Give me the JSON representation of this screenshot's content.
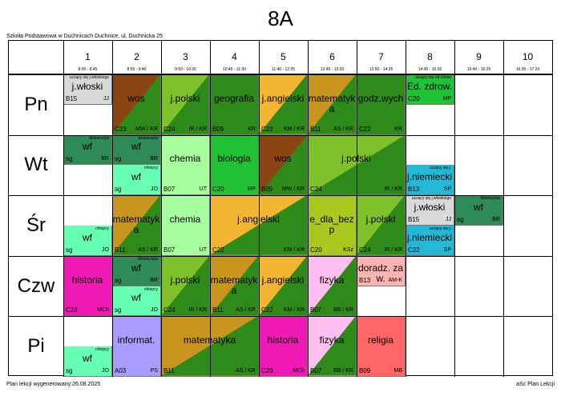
{
  "title": "8A",
  "school": "Szkoła Podstawowa w Duchnicach Duchnice, ul. Duchnicka 25",
  "footer_left": "Plan lekcji wygenerowany:26.08.2025",
  "footer_right": "aSc Plan Lekcji",
  "periods": [
    {
      "num": "1",
      "time": "8:00 - 8:45"
    },
    {
      "num": "2",
      "time": "8:55 - 9:40"
    },
    {
      "num": "3",
      "time": "9:50 - 10:35"
    },
    {
      "num": "4",
      "time": "10:45 - 11:30"
    },
    {
      "num": "5",
      "time": "11:40 - 12:25"
    },
    {
      "num": "6",
      "time": "12:45 - 13:30"
    },
    {
      "num": "7",
      "time": "13:50 - 14:35"
    },
    {
      "num": "8",
      "time": "14:45 - 15:30"
    },
    {
      "num": "9",
      "time": "15:40 - 16:25"
    },
    {
      "num": "10",
      "time": "16:35 - 17:20"
    }
  ],
  "days": [
    "Pn",
    "Wt",
    "Śr",
    "Czw",
    "Pi"
  ],
  "lessons": [
    {
      "day": 0,
      "p": 0,
      "span": 1,
      "half": "top",
      "subject": "j.włoski",
      "room": "B15",
      "teacher": "JJ",
      "group": "uczący się j.włoskiego",
      "c1": "#d9d9d9",
      "c2": ""
    },
    {
      "day": 0,
      "p": 1,
      "span": 1,
      "half": "full",
      "subject": "wos",
      "room": "C23",
      "teacher": "MW / KR",
      "group": "",
      "c1": "#8b4513",
      "c2": "#2e8b1a"
    },
    {
      "day": 0,
      "p": 2,
      "span": 1,
      "half": "full",
      "subject": "j.polski",
      "room": "C24",
      "teacher": "IR / KR",
      "group": "",
      "c1": "#7fc12a",
      "c2": "#2e8b1a"
    },
    {
      "day": 0,
      "p": 3,
      "span": 1,
      "half": "full",
      "subject": "geografia",
      "room": "B09",
      "teacher": "KR",
      "group": "",
      "c1": "#2e8b1a",
      "c2": "#2e8b1a"
    },
    {
      "day": 0,
      "p": 4,
      "span": 1,
      "half": "full",
      "subject": "j.angielski",
      "room": "C22",
      "teacher": "KM / KR",
      "group": "",
      "c1": "#f2b632",
      "c2": "#2e8b1a"
    },
    {
      "day": 0,
      "p": 5,
      "span": 1,
      "half": "full",
      "subject": "matematyka",
      "room": "B11",
      "teacher": "AS / KR",
      "group": "",
      "c1": "#c8961e",
      "c2": "#2e8b1a"
    },
    {
      "day": 0,
      "p": 6,
      "span": 1,
      "half": "full",
      "subject": "godz.wych",
      "room": "C22",
      "teacher": "KR",
      "group": "",
      "c1": "#2e8b1a",
      "c2": "#2e8b1a"
    },
    {
      "day": 0,
      "p": 7,
      "span": 1,
      "half": "top",
      "subject": "Ed. zdrow.",
      "room": "C20",
      "teacher": "MP",
      "group": "uczący się ed.zdrow",
      "c1": "#22c236",
      "c2": ""
    },
    {
      "day": 1,
      "p": 0,
      "span": 1,
      "half": "top",
      "subject": "wf",
      "room": "sg",
      "teacher": "BR",
      "group": "dziewczęta",
      "c1": "#2e8b57",
      "c2": ""
    },
    {
      "day": 1,
      "p": 1,
      "span": 1,
      "half": "top",
      "subject": "wf",
      "room": "sg",
      "teacher": "BR",
      "group": "dziewczęta",
      "c1": "#2e8b57",
      "c2": ""
    },
    {
      "day": 1,
      "p": 1,
      "span": 1,
      "half": "bottom",
      "subject": "wf",
      "room": "sg",
      "teacher": "JO",
      "group": "chłopcy",
      "c1": "#66ffb3",
      "c2": ""
    },
    {
      "day": 1,
      "p": 2,
      "span": 1,
      "half": "full",
      "subject": "chemia",
      "room": "B07",
      "teacher": "UT",
      "group": "",
      "c1": "#a8ff9e",
      "c2": ""
    },
    {
      "day": 1,
      "p": 3,
      "span": 1,
      "half": "full",
      "subject": "biologia",
      "room": "C20",
      "teacher": "MP",
      "group": "",
      "c1": "#22c236",
      "c2": ""
    },
    {
      "day": 1,
      "p": 4,
      "span": 1,
      "half": "full",
      "subject": "wos",
      "room": "B09",
      "teacher": "MW / KR",
      "group": "",
      "c1": "#8b4513",
      "c2": "#2e8b1a"
    },
    {
      "day": 1,
      "p": 5,
      "span": 2,
      "half": "full",
      "subject": "j.polski",
      "room": "C24",
      "teacher": "IR / KR",
      "group": "",
      "c1": "#7fc12a",
      "c2": "#2e8b1a"
    },
    {
      "day": 1,
      "p": 7,
      "span": 1,
      "half": "bottom",
      "subject": "j.niemiecki",
      "room": "B13",
      "teacher": "SP",
      "group": "uczący się j.",
      "c1": "#22b8d6",
      "c2": ""
    },
    {
      "day": 2,
      "p": 0,
      "span": 1,
      "half": "bottom",
      "subject": "wf",
      "room": "sg",
      "teacher": "JO",
      "group": "chłopcy",
      "c1": "#66ffb3",
      "c2": ""
    },
    {
      "day": 2,
      "p": 1,
      "span": 1,
      "half": "full",
      "subject": "matematyka",
      "room": "B11",
      "teacher": "AS / KR",
      "group": "",
      "c1": "#c8961e",
      "c2": "#2e8b1a"
    },
    {
      "day": 2,
      "p": 2,
      "span": 1,
      "half": "full",
      "subject": "chemia",
      "room": "B07",
      "teacher": "UT",
      "group": "",
      "c1": "#a8ff9e",
      "c2": ""
    },
    {
      "day": 2,
      "p": 3,
      "span": 2,
      "half": "full",
      "subject": "j.angielski",
      "room": "C22",
      "teacher": "KM / KR",
      "group": "",
      "c1": "#f2b632",
      "c2": "#2e8b1a"
    },
    {
      "day": 2,
      "p": 5,
      "span": 1,
      "half": "full",
      "subject": "e_dla_bezp",
      "room": "C20",
      "teacher": "KSz",
      "group": "",
      "c1": "#a8c820",
      "c2": ""
    },
    {
      "day": 2,
      "p": 6,
      "span": 1,
      "half": "full",
      "subject": "j.polski",
      "room": "C24",
      "teacher": "IR / KR",
      "group": "",
      "c1": "#7fc12a",
      "c2": "#2e8b1a"
    },
    {
      "day": 2,
      "p": 7,
      "span": 1,
      "half": "top",
      "subject": "j.włoski",
      "room": "B15",
      "teacher": "JJ",
      "group": "uczący się j.włoskiego",
      "c1": "#d9d9d9",
      "c2": ""
    },
    {
      "day": 2,
      "p": 7,
      "span": 1,
      "half": "bottom",
      "subject": "j.niemiecki",
      "room": "C22",
      "teacher": "SP",
      "group": "uczący się j.",
      "c1": "#22b8d6",
      "c2": ""
    },
    {
      "day": 2,
      "p": 8,
      "span": 1,
      "half": "top",
      "subject": "wf",
      "room": "sg",
      "teacher": "BR",
      "group": "dziewczęta",
      "c1": "#2e8b57",
      "c2": ""
    },
    {
      "day": 3,
      "p": 0,
      "span": 1,
      "half": "full",
      "subject": "historia",
      "room": "C24",
      "teacher": "MCh",
      "group": "",
      "c1": "#ee1ab3",
      "c2": ""
    },
    {
      "day": 3,
      "p": 1,
      "span": 1,
      "half": "top",
      "subject": "wf",
      "room": "sg",
      "teacher": "BR",
      "group": "dziewczęta",
      "c1": "#2e8b57",
      "c2": ""
    },
    {
      "day": 3,
      "p": 1,
      "span": 1,
      "half": "bottom",
      "subject": "wf",
      "room": "sg",
      "teacher": "JO",
      "group": "chłopcy",
      "c1": "#66ffb3",
      "c2": ""
    },
    {
      "day": 3,
      "p": 2,
      "span": 1,
      "half": "full",
      "subject": "j.polski",
      "room": "C24",
      "teacher": "IR / KR",
      "group": "",
      "c1": "#7fc12a",
      "c2": "#2e8b1a"
    },
    {
      "day": 3,
      "p": 3,
      "span": 1,
      "half": "full",
      "subject": "matematyka",
      "room": "B11",
      "teacher": "AS / KR",
      "group": "",
      "c1": "#c8961e",
      "c2": "#2e8b1a"
    },
    {
      "day": 3,
      "p": 4,
      "span": 1,
      "half": "full",
      "subject": "j.angielski",
      "room": "C22",
      "teacher": "KM / KR",
      "group": "",
      "c1": "#f2b632",
      "c2": "#2e8b1a"
    },
    {
      "day": 3,
      "p": 5,
      "span": 1,
      "half": "full",
      "subject": "fizyka",
      "room": "B07",
      "teacher": "BB / KR",
      "group": "",
      "c1": "#ffc0f0",
      "c2": "#2e8b1a"
    },
    {
      "day": 3,
      "p": 6,
      "span": 1,
      "half": "top",
      "subject": "doradz. zaw.",
      "room": "B13",
      "teacher": "AM-K",
      "group": "",
      "c1": "#ffb3b3",
      "c2": ""
    },
    {
      "day": 4,
      "p": 0,
      "span": 1,
      "half": "bottom",
      "subject": "wf",
      "room": "sg",
      "teacher": "JO",
      "group": "chłopcy",
      "c1": "#66ffb3",
      "c2": ""
    },
    {
      "day": 4,
      "p": 1,
      "span": 1,
      "half": "full",
      "subject": "informat.",
      "room": "A03",
      "teacher": "PS",
      "group": "",
      "c1": "#a99cff",
      "c2": ""
    },
    {
      "day": 4,
      "p": 2,
      "span": 2,
      "half": "full",
      "subject": "matematyka",
      "room": "B11",
      "teacher": "AS / KR",
      "group": "",
      "c1": "#c8961e",
      "c2": "#2e8b1a"
    },
    {
      "day": 4,
      "p": 4,
      "span": 1,
      "half": "full",
      "subject": "historia",
      "room": "C20",
      "teacher": "MCh",
      "group": "",
      "c1": "#ee1ab3",
      "c2": ""
    },
    {
      "day": 4,
      "p": 5,
      "span": 1,
      "half": "full",
      "subject": "fizyka",
      "room": "B07",
      "teacher": "BB / KR",
      "group": "",
      "c1": "#ffc0f0",
      "c2": "#2e8b1a"
    },
    {
      "day": 4,
      "p": 6,
      "span": 1,
      "half": "full",
      "subject": "religia",
      "room": "B09",
      "teacher": "MB",
      "group": "",
      "c1": "#ff6666",
      "c2": ""
    }
  ]
}
